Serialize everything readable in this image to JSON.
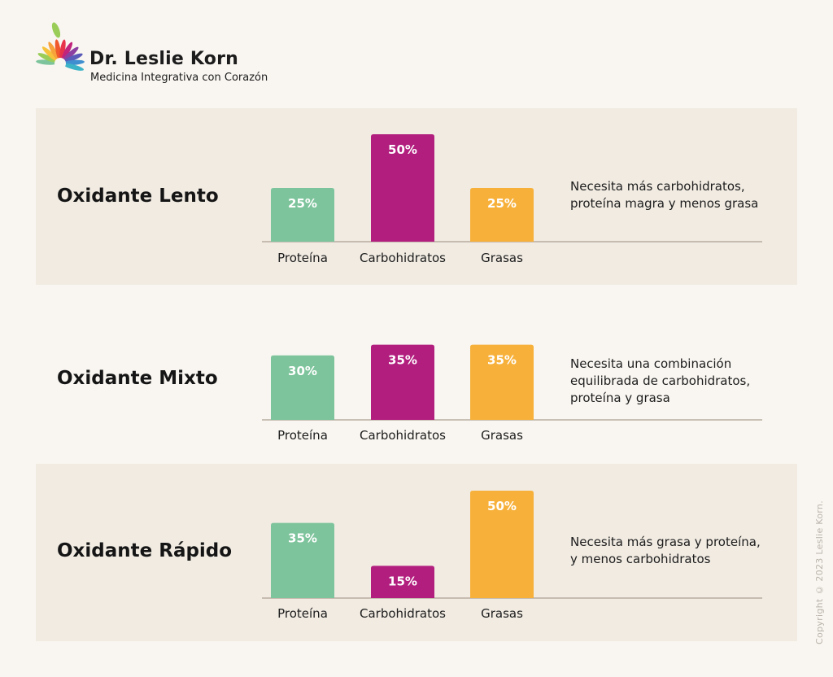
{
  "brand": {
    "name": "Dr. Leslie Korn",
    "tagline": "Medicina Integrativa con Corazón"
  },
  "copyright": "Copyright © 2023 Leslie Korn.",
  "colors": {
    "proteina": "#7dc49c",
    "carbohidratos": "#b21e7e",
    "grasas": "#f7b13b",
    "panel_bg": "#f1ebe2",
    "page_bg": "#f9f6f1",
    "axis": "#b8ad9f"
  },
  "chart_data": [
    {
      "type": "bar",
      "title": "Oxidante Lento",
      "categories": [
        "Proteína",
        "Carbohidratos",
        "Grasas"
      ],
      "values": [
        25,
        50,
        25
      ],
      "value_labels": [
        "25%",
        "50%",
        "25%"
      ],
      "ylim": [
        0,
        50
      ],
      "description": [
        "Necesita más carbohidratos,",
        "proteína magra y menos grasa"
      ]
    },
    {
      "type": "bar",
      "title": "Oxidante Mixto",
      "categories": [
        "Proteína",
        "Carbohidratos",
        "Grasas"
      ],
      "values": [
        30,
        35,
        35
      ],
      "value_labels": [
        "30%",
        "35%",
        "35%"
      ],
      "ylim": [
        0,
        50
      ],
      "description": [
        "Necesita una combinación",
        "equilibrada de carbohidratos,",
        "proteína y grasa"
      ]
    },
    {
      "type": "bar",
      "title": "Oxidante Rápido",
      "categories": [
        "Proteína",
        "Carbohidratos",
        "Grasas"
      ],
      "values": [
        35,
        15,
        50
      ],
      "value_labels": [
        "35%",
        "15%",
        "50%"
      ],
      "ylim": [
        0,
        50
      ],
      "description": [
        "Necesita más grasa y proteína,",
        "y menos carbohidratos"
      ]
    }
  ]
}
